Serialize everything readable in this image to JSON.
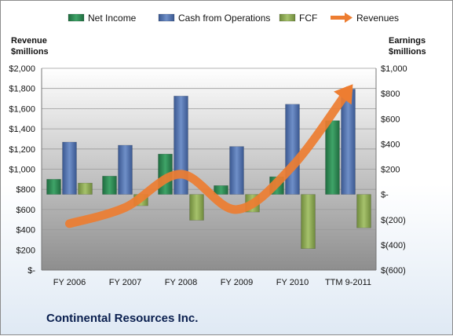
{
  "company": "Continental Resources Inc.",
  "chart_data": {
    "type": "bar",
    "title": "",
    "categories": [
      "FY 2006",
      "FY 2007",
      "FY 2008",
      "FY 2009",
      "FY 2010",
      "TTM 9-2011"
    ],
    "left_axis": {
      "label": "Revenue\n$millions",
      "ylim": [
        0,
        2000
      ],
      "ticks": [
        0,
        200,
        400,
        600,
        800,
        1000,
        1200,
        1400,
        1600,
        1800,
        2000
      ],
      "tick_labels": [
        "$-",
        "$200",
        "$400",
        "$600",
        "$800",
        "$1,000",
        "$1,200",
        "$1,400",
        "$1,600",
        "$1,800",
        "$2,000"
      ]
    },
    "right_axis": {
      "label": "Earnings\n$millions",
      "ylim": [
        -600,
        1000
      ],
      "ticks": [
        -600,
        -400,
        -200,
        0,
        200,
        400,
        600,
        800,
        1000
      ],
      "tick_labels": [
        "$(600)",
        "$(400)",
        "$(200)",
        "$-",
        "$200",
        "$400",
        "$600",
        "$800",
        "$1,000"
      ]
    },
    "series": [
      {
        "name": "Net Income",
        "type": "bar",
        "axis": "right",
        "color": "#2e8b57",
        "values": [
          120,
          145,
          320,
          70,
          140,
          585
        ]
      },
      {
        "name": "Cash from Operations",
        "type": "bar",
        "axis": "right",
        "color": "#4f6fa8",
        "values": [
          415,
          390,
          780,
          380,
          715,
          835
        ]
      },
      {
        "name": "FCF",
        "type": "bar",
        "axis": "right",
        "color": "#8faa55",
        "values": [
          90,
          -90,
          -205,
          -140,
          -430,
          -265
        ]
      },
      {
        "name": "Revenues",
        "type": "line",
        "axis": "left",
        "color": "#ed7d31",
        "values": [
          460,
          620,
          950,
          600,
          1030,
          1780
        ]
      }
    ],
    "legend_position": "top",
    "grid": true
  }
}
